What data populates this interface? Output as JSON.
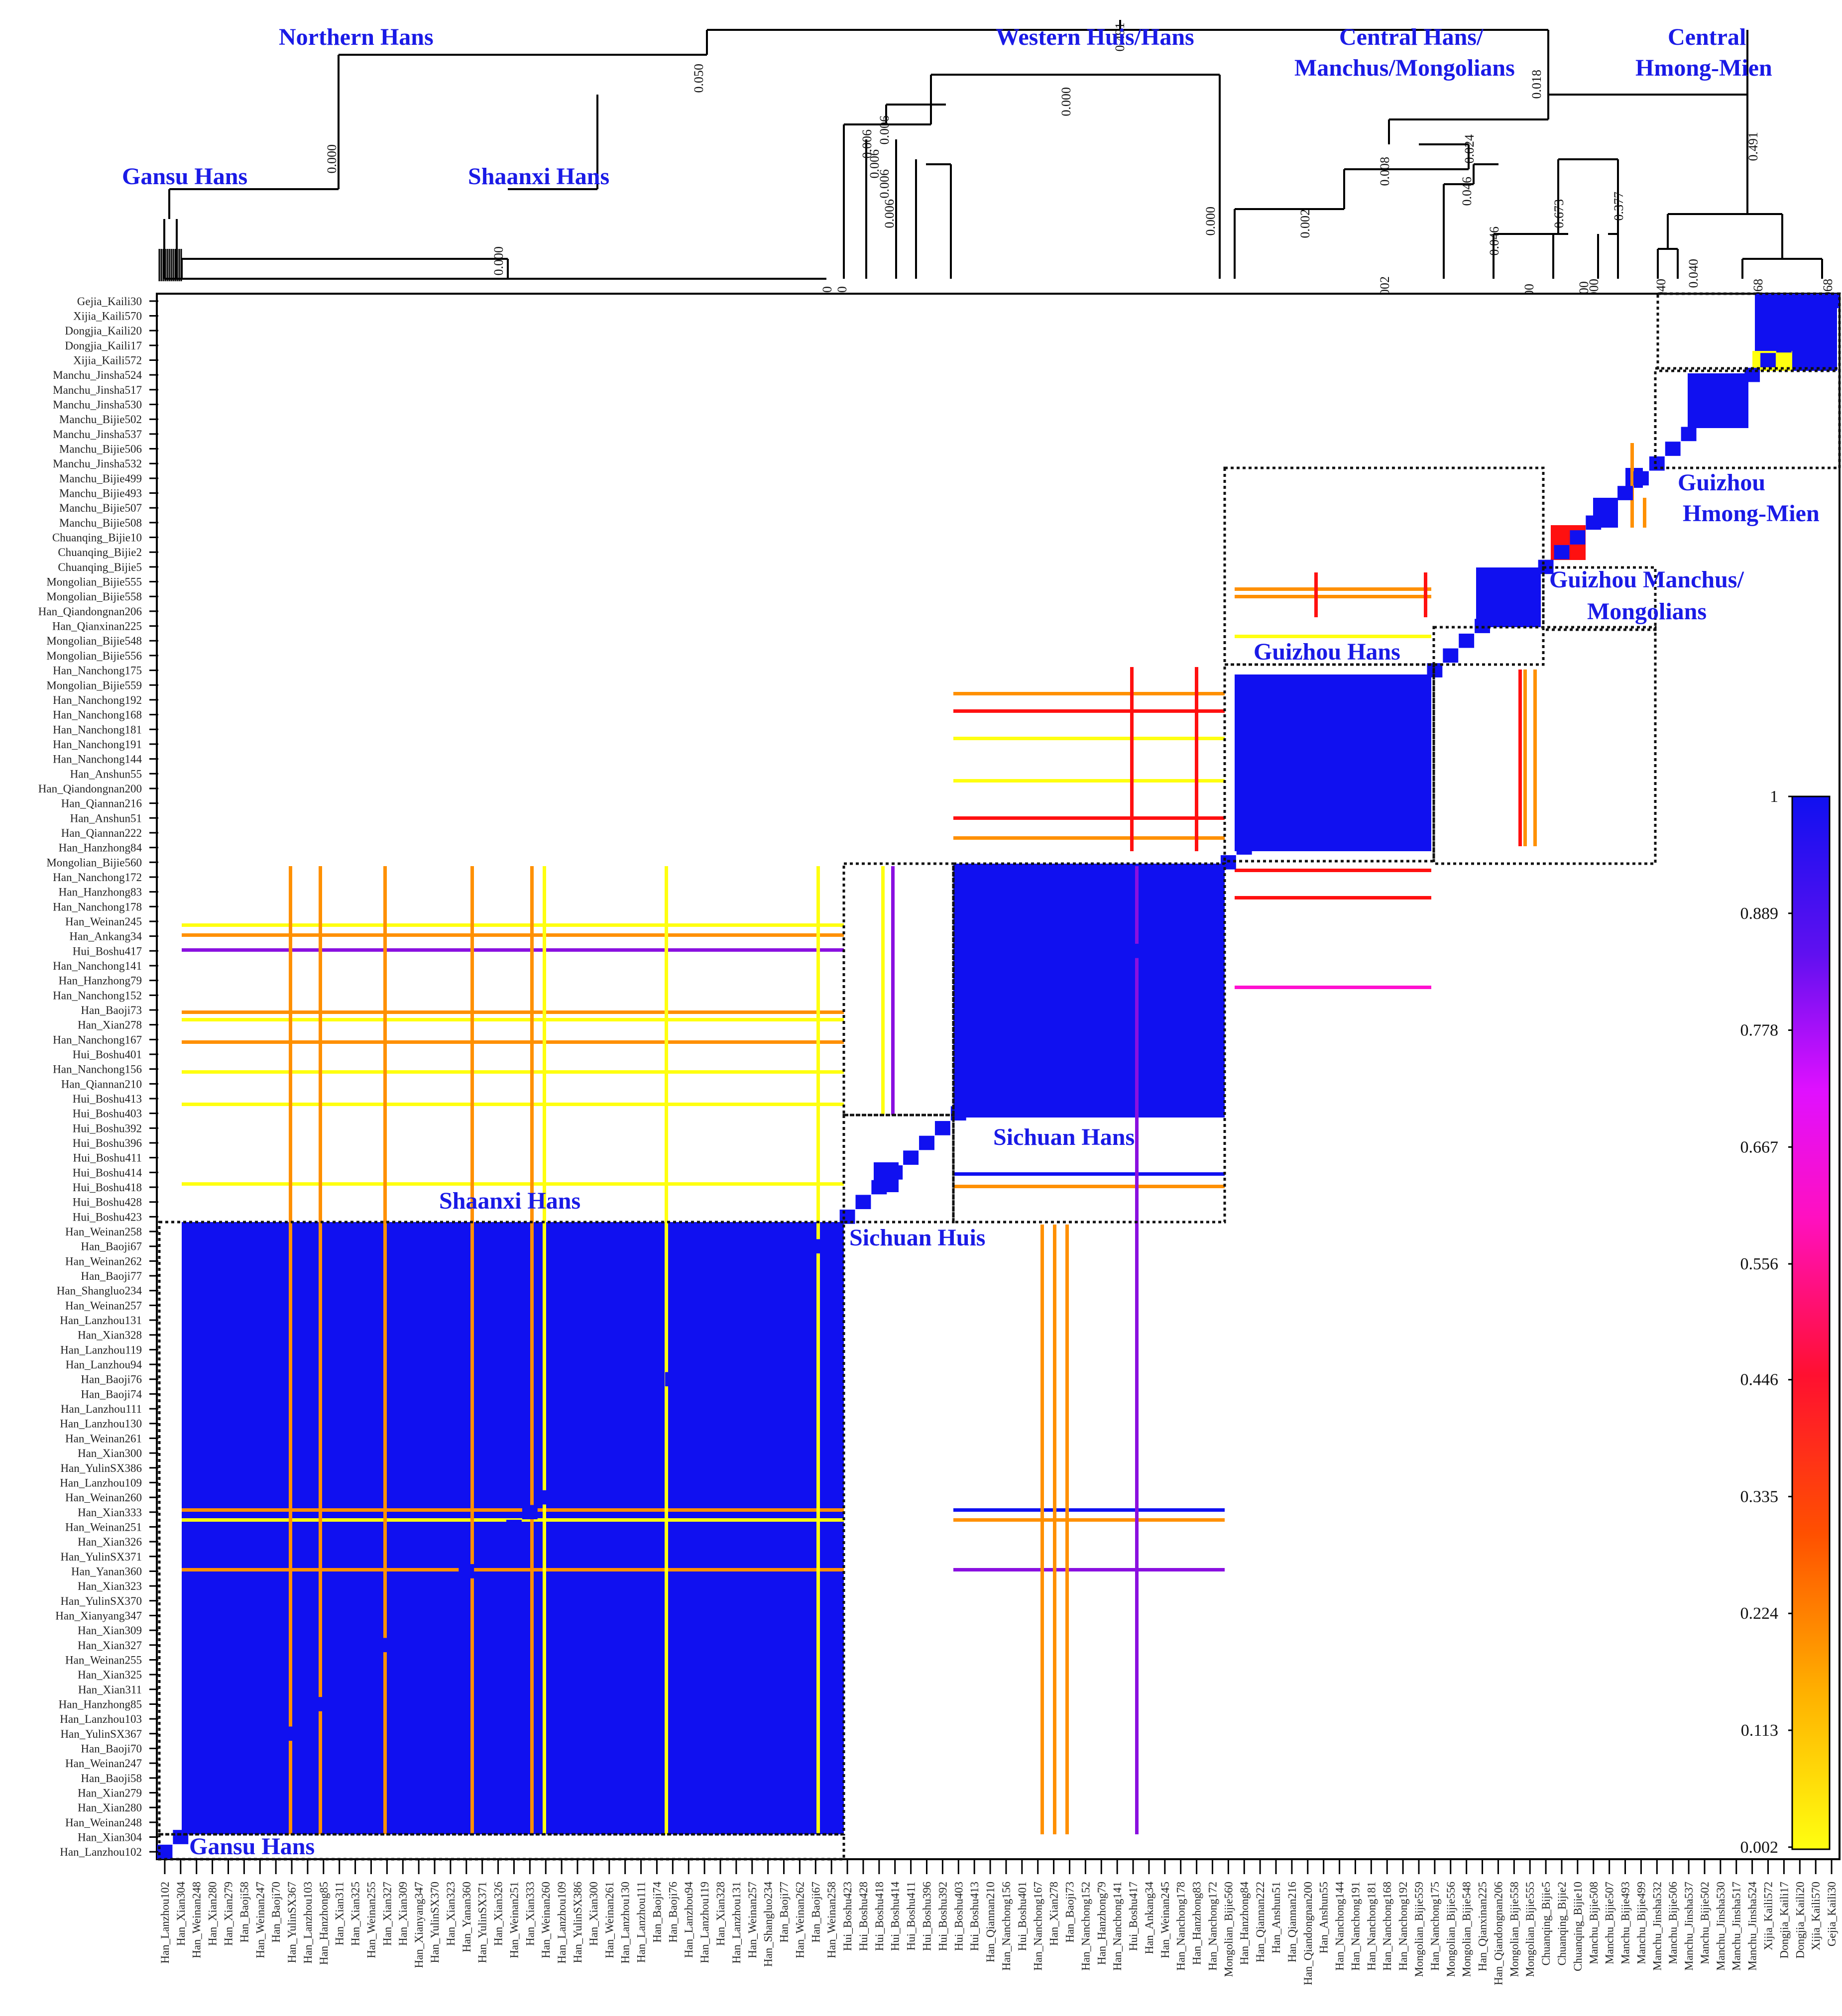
{
  "chart_data": {
    "type": "heatmap",
    "title": "",
    "xlabel": "",
    "ylabel": "",
    "value_range": [
      0,
      1
    ],
    "grid": false,
    "legend": "colorbar-right",
    "colors": {
      "high": "#1010f0",
      "mid_purple": "#8a10e0",
      "magenta": "#ff10d0",
      "red": "#ff1010",
      "orange": "#ff9000",
      "low": "#ffff10",
      "background": "#ffffff",
      "group_label": "#1a1ae6"
    },
    "colorbar": {
      "ticks": [
        1,
        0.889,
        0.778,
        0.667,
        0.556,
        0.446,
        0.335,
        0.224,
        0.113,
        0.002
      ],
      "tick_labels": [
        "1",
        "0.889",
        "0.778",
        "0.667",
        "0.556",
        "0.446",
        "0.335",
        "0.224",
        "0.113",
        "0.002"
      ]
    },
    "row_labels_visible": [
      "Gejia_Kaili30",
      "Xijia_Kaili570",
      "Dongjia_Kaili20",
      "Dongjia_Kaili17",
      "Xijia_Kaili572",
      "Manchu_Jinsha524",
      "Manchu_Jinsha517",
      "Manchu_Jinsha530",
      "Manchu_Bijie502",
      "Manchu_Jinsha537",
      "Manchu_Bijie506",
      "Manchu_Jinsha532",
      "Manchu_Bijie499",
      "Manchu_Bijie493",
      "Manchu_Bijie507",
      "Manchu_Bijie508",
      "Chuanqing_Bijie10",
      "Chuanqing_Bijie2",
      "Chuanqing_Bijie5",
      "Mongolian_Bijie555",
      "Mongolian_Bijie558",
      "Han_Qiandongnan206",
      "Han_Qianxinan225",
      "Mongolian_Bijie548",
      "Mongolian_Bijie556",
      "Han_Nanchong175",
      "Mongolian_Bijie559",
      "Han_Nanchong192",
      "Han_Nanchong168",
      "Han_Nanchong181",
      "Han_Nanchong191",
      "Han_Nanchong144",
      "Han_Anshun55",
      "Han_Qiandongnan200",
      "Han_Qiannan216",
      "Han_Anshun51",
      "Han_Qiannan222",
      "Han_Hanzhong84",
      "Mongolian_Bijie560",
      "Han_Nanchong172",
      "Han_Hanzhong83",
      "Han_Nanchong178",
      "Han_Weinan245",
      "Han_Ankang34",
      "Hui_Boshu417",
      "Han_Nanchong141",
      "Han_Hanzhong79",
      "Han_Nanchong152",
      "Han_Baoji73",
      "Han_Xian278",
      "Han_Nanchong167",
      "Hui_Boshu401",
      "Han_Nanchong156",
      "Han_Qiannan210",
      "Hui_Boshu413",
      "Hui_Boshu403",
      "Hui_Boshu392",
      "Hui_Boshu396",
      "Hui_Boshu411",
      "Hui_Boshu414",
      "Hui_Boshu418",
      "Hui_Boshu428",
      "Hui_Boshu423",
      "Han_Weinan258",
      "Han_Baoji67",
      "Han_Weinan262",
      "Han_Baoji77",
      "Han_Shangluo234",
      "Han_Weinan257",
      "Han_Lanzhou131",
      "Han_Xian328",
      "Han_Lanzhou119",
      "Han_Lanzhou94",
      "Han_Baoji76",
      "Han_Baoji74",
      "Han_Lanzhou111",
      "Han_Lanzhou130",
      "Han_Weinan261",
      "Han_Xian300",
      "Han_YulinSX386",
      "Han_Lanzhou109",
      "Han_Weinan260",
      "Han_Xian333",
      "Han_Weinan251",
      "Han_Xian326",
      "Han_YulinSX371",
      "Han_Yanan360",
      "Han_Xian323",
      "Han_YulinSX370",
      "Han_Xianyang347",
      "Han_Xian309",
      "Han_Xian327",
      "Han_Weinan255",
      "Han_Xian325",
      "Han_Xian311",
      "Han_Hanzhong85",
      "Han_Lanzhou103",
      "Han_YulinSX367",
      "Han_Baoji70",
      "Han_Weinan247",
      "Han_Baoji58",
      "Han_Xian279",
      "Han_Xian280",
      "Han_Weinan248",
      "Han_Xian304",
      "Han_Lanzhou102"
    ],
    "col_labels_visible": [
      "Han_Lanzhou102",
      "Han_Xian304",
      "Han_Weinan248",
      "Han_Xian280",
      "Han_Xian279",
      "Han_Baoji58",
      "Han_Weinan247",
      "Han_Baoji70",
      "Han_YulinSX367",
      "Han_Lanzhou103",
      "Han_Hanzhong85",
      "Han_Xian311",
      "Han_Xian325",
      "Han_Weinan255",
      "Han_Xian327",
      "Han_Xian309",
      "Han_Xianyang347",
      "Han_YulinSX370",
      "Han_Xian323",
      "Han_Yanan360",
      "Han_YulinSX371",
      "Han_Xian326",
      "Han_Weinan251",
      "Han_Xian333",
      "Han_Weinan260",
      "Han_Lanzhou109",
      "Han_YulinSX386",
      "Han_Xian300",
      "Han_Weinan261",
      "Han_Lanzhou130",
      "Han_Lanzhou111",
      "Han_Baoji74",
      "Han_Baoji76",
      "Han_Lanzhou94",
      "Han_Lanzhou119",
      "Han_Xian328",
      "Han_Lanzhou131",
      "Han_Weinan257",
      "Han_Shangluo234",
      "Han_Baoji77",
      "Han_Weinan262",
      "Han_Baoji67",
      "Han_Weinan258",
      "Hui_Boshu423",
      "Hui_Boshu428",
      "Hui_Boshu418",
      "Hui_Boshu414",
      "Hui_Boshu411",
      "Hui_Boshu396",
      "Hui_Boshu392",
      "Hui_Boshu403",
      "Hui_Boshu413",
      "Han_Qiannan210",
      "Han_Nanchong156",
      "Hui_Boshu401",
      "Han_Nanchong167",
      "Han_Xian278",
      "Han_Baoji73",
      "Han_Nanchong152",
      "Han_Hanzhong79",
      "Han_Nanchong141",
      "Hui_Boshu417",
      "Han_Ankang34",
      "Han_Weinan245",
      "Han_Nanchong178",
      "Han_Hanzhong83",
      "Han_Nanchong172",
      "Mongolian_Bijie560",
      "Han_Hanzhong84",
      "Han_Qiannan222",
      "Han_Anshun51",
      "Han_Qiannan216",
      "Han_Qiandongnan200",
      "Han_Anshun55",
      "Han_Nanchong144",
      "Han_Nanchong191",
      "Han_Nanchong181",
      "Han_Nanchong168",
      "Han_Nanchong192",
      "Mongolian_Bijie559",
      "Han_Nanchong175",
      "Mongolian_Bijie556",
      "Mongolian_Bijie548",
      "Han_Qianxinan225",
      "Han_Qiandongnan206",
      "Mongolian_Bijie558",
      "Mongolian_Bijie555",
      "Chuanqing_Bijie5",
      "Chuanqing_Bijie2",
      "Chuanqing_Bijie10",
      "Manchu_Bijie508",
      "Manchu_Bijie507",
      "Manchu_Bijie493",
      "Manchu_Bijie499",
      "Manchu_Jinsha532",
      "Manchu_Bijie506",
      "Manchu_Jinsha537",
      "Manchu_Bijie502",
      "Manchu_Jinsha530",
      "Manchu_Jinsha517",
      "Manchu_Jinsha524",
      "Xijia_Kaili572",
      "Dongjia_Kaili17",
      "Dongjia_Kaili20",
      "Xijia_Kaili570",
      "Gejia_Kaili30"
    ],
    "heatmap_group_labels": [
      "Gansu Hans",
      "Shaanxi Hans",
      "Sichuan Huis",
      "Sichuan Hans",
      "Guizhou Hans",
      "Guizhou Manchus/",
      "Mongolians",
      "Guizhou",
      "Hmong-Mien"
    ],
    "dendrogram_group_labels": [
      "Northern  Hans",
      "Western Huis/Hans",
      "Central Hans/",
      "Manchus/Mongolians",
      "Central",
      "Hmong-Mien",
      "Gansu Hans",
      "Shaanxi Hans"
    ],
    "dendrogram_node_values": [
      "0.491",
      "0.050",
      "0.000",
      "0.000",
      "0.000",
      "0.006",
      "0.006",
      "0.006",
      "0.006",
      "0.006",
      "0.000",
      "0.018",
      "0.024",
      "0.008",
      "0.002",
      "0.046",
      "0.046",
      "0.673",
      "0.377",
      "0.491",
      "0.000",
      "0.000",
      "0.000",
      "0.002",
      "0.000",
      "0.040",
      "0.040",
      "0.068",
      "0.068",
      "0.000"
    ]
  }
}
